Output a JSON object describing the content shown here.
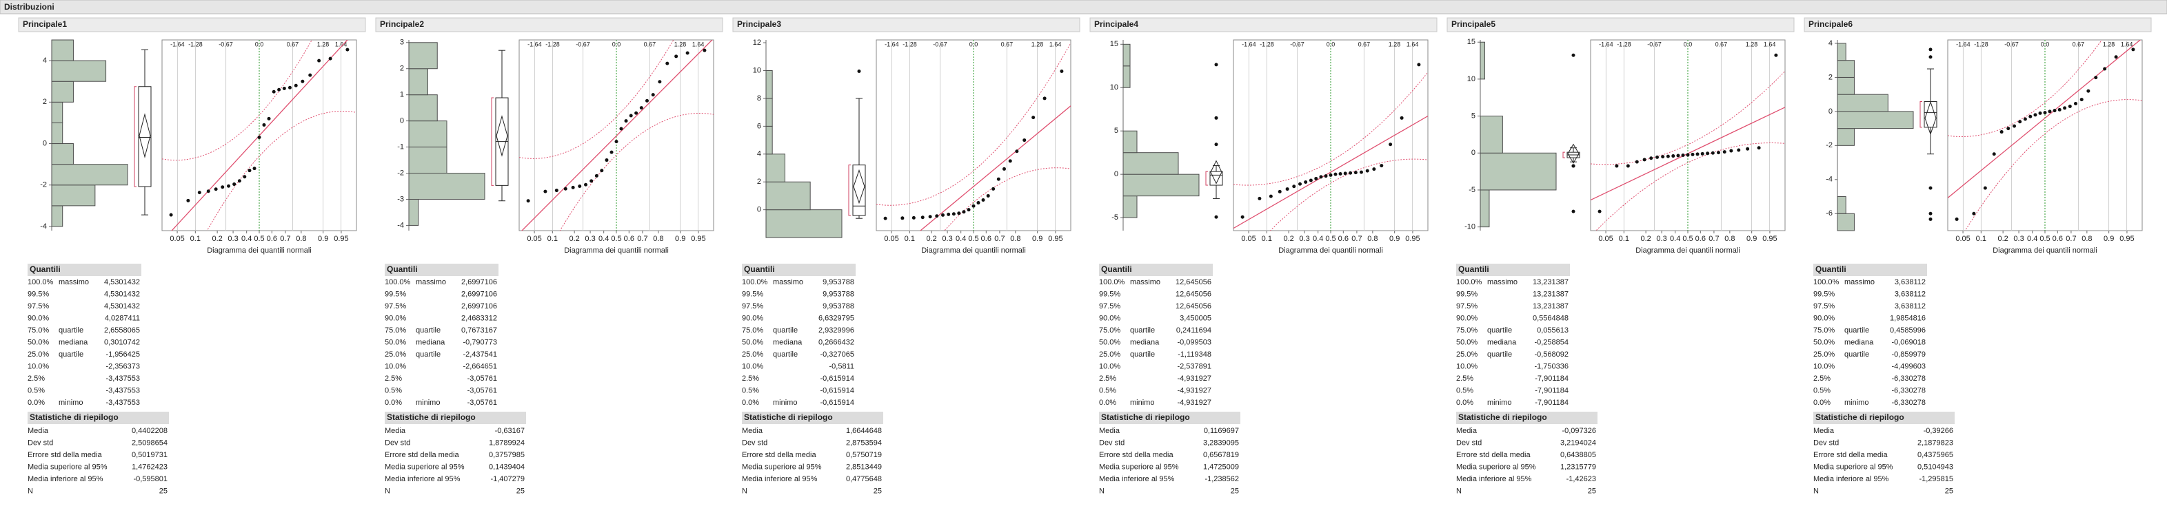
{
  "header": {
    "title": "Distribuzioni"
  },
  "labels": {
    "quantiles": "Quantili",
    "summary": "Statistiche di riepilogo",
    "qplot": "Diagramma dei quantili normali"
  },
  "quantile_axis": {
    "top_ticks": [
      -1.64,
      -1.28,
      -0.67,
      {
        "value": 0,
        "label": "0.0"
      },
      0.67,
      1.28,
      1.64
    ],
    "bottom_ticks": [
      0.05,
      0.1,
      0.2,
      0.3,
      0.4,
      0.5,
      0.6,
      0.7,
      0.8,
      0.9,
      0.95
    ]
  },
  "panels": [
    {
      "title": "Principale1",
      "ylim": [
        -4.2,
        5
      ],
      "yticks": [
        -4,
        -2,
        0,
        2,
        4
      ],
      "bins": [
        -4,
        -3,
        -2,
        -1,
        0,
        1,
        2,
        3,
        4,
        5
      ],
      "counts": [
        1,
        4,
        7,
        2,
        1,
        1,
        2,
        5,
        2
      ],
      "points": [
        -3.44,
        -2.75,
        -2.36,
        -2.3,
        -2.2,
        -2.1,
        -2.05,
        -1.96,
        -1.8,
        -1.6,
        -1.3,
        -1.2,
        0.3,
        0.9,
        1.2,
        2.5,
        2.6,
        2.66,
        2.7,
        2.8,
        3.0,
        3.3,
        4.0,
        4.1,
        4.53
      ],
      "quantiles": [
        {
          "pct": "100.0%",
          "label": "massimo",
          "value": "4,5301432"
        },
        {
          "pct": "99.5%",
          "value": "4,5301432"
        },
        {
          "pct": "97.5%",
          "value": "4,5301432"
        },
        {
          "pct": "90.0%",
          "value": "4,0287411"
        },
        {
          "pct": "75.0%",
          "label": "quartile",
          "value": "2,6558065"
        },
        {
          "pct": "50.0%",
          "label": "mediana",
          "value": "0,3010742"
        },
        {
          "pct": "25.0%",
          "label": "quartile",
          "value": "-1,956425"
        },
        {
          "pct": "10.0%",
          "value": "-2,356373"
        },
        {
          "pct": "2.5%",
          "value": "-3,437553"
        },
        {
          "pct": "0.5%",
          "value": "-3,437553"
        },
        {
          "pct": "0.0%",
          "label": "minimo",
          "value": "-3,437553"
        }
      ],
      "summary": [
        [
          "Media",
          "0,4402208"
        ],
        [
          "Dev std",
          "2,5098654"
        ],
        [
          "Errore std della media",
          "0,5019731"
        ],
        [
          "Media superiore al 95%",
          "1,4762423"
        ],
        [
          "Media inferiore al 95%",
          "-0,595801"
        ],
        [
          "N",
          "25"
        ]
      ]
    },
    {
      "title": "Principale2",
      "ylim": [
        -4.2,
        3.1
      ],
      "yticks": [
        -4,
        -3,
        -2,
        -1,
        0,
        1,
        2,
        3
      ],
      "bins": [
        -4,
        -3,
        -2,
        -1,
        0,
        1,
        2,
        3
      ],
      "counts": [
        1,
        8,
        4,
        4,
        3,
        2,
        3
      ],
      "points": [
        -3.06,
        -2.7,
        -2.66,
        -2.6,
        -2.55,
        -2.5,
        -2.44,
        -2.3,
        -2.1,
        -1.9,
        -1.5,
        -1.2,
        -0.79,
        -0.3,
        0.0,
        0.2,
        0.3,
        0.5,
        0.77,
        1.0,
        1.5,
        2.2,
        2.47,
        2.6,
        2.7
      ],
      "quantiles": [
        {
          "pct": "100.0%",
          "label": "massimo",
          "value": "2,6997106"
        },
        {
          "pct": "99.5%",
          "value": "2,6997106"
        },
        {
          "pct": "97.5%",
          "value": "2,6997106"
        },
        {
          "pct": "90.0%",
          "value": "2,4683312"
        },
        {
          "pct": "75.0%",
          "label": "quartile",
          "value": "0,7673167"
        },
        {
          "pct": "50.0%",
          "label": "mediana",
          "value": "-0,790773"
        },
        {
          "pct": "25.0%",
          "label": "quartile",
          "value": "-2,437541"
        },
        {
          "pct": "10.0%",
          "value": "-2,664651"
        },
        {
          "pct": "2.5%",
          "value": "-3,05761"
        },
        {
          "pct": "0.5%",
          "value": "-3,05761"
        },
        {
          "pct": "0.0%",
          "label": "minimo",
          "value": "-3,05761"
        }
      ],
      "summary": [
        [
          "Media",
          "-0,63167"
        ],
        [
          "Dev std",
          "1,8789924"
        ],
        [
          "Errore std della media",
          "0,3757985"
        ],
        [
          "Media superiore al 95%",
          "0,1439404"
        ],
        [
          "Media inferiore al 95%",
          "-1,407279"
        ],
        [
          "N",
          "25"
        ]
      ]
    },
    {
      "title": "Principale3",
      "ylim": [
        -1.5,
        12.2
      ],
      "yticks": [
        0,
        2,
        4,
        6,
        8,
        10,
        12
      ],
      "bins": [
        -2,
        0,
        2,
        4,
        6,
        8,
        10
      ],
      "counts": [
        12,
        7,
        3,
        1,
        1,
        1
      ],
      "points": [
        -0.62,
        -0.6,
        -0.58,
        -0.55,
        -0.5,
        -0.45,
        -0.38,
        -0.33,
        -0.3,
        -0.25,
        -0.15,
        0.0,
        0.27,
        0.5,
        0.7,
        1.0,
        1.5,
        2.2,
        2.93,
        3.5,
        4.2,
        5.0,
        6.63,
        8.0,
        9.95
      ],
      "quantiles": [
        {
          "pct": "100.0%",
          "label": "massimo",
          "value": "9,953788"
        },
        {
          "pct": "99.5%",
          "value": "9,953788"
        },
        {
          "pct": "97.5%",
          "value": "9,953788"
        },
        {
          "pct": "90.0%",
          "value": "6,6329795"
        },
        {
          "pct": "75.0%",
          "label": "quartile",
          "value": "2,9329996"
        },
        {
          "pct": "50.0%",
          "label": "mediana",
          "value": "0,2666432"
        },
        {
          "pct": "25.0%",
          "label": "quartile",
          "value": "-0,327065"
        },
        {
          "pct": "10.0%",
          "value": "-0,5811"
        },
        {
          "pct": "2.5%",
          "value": "-0,615914"
        },
        {
          "pct": "0.5%",
          "value": "-0,615914"
        },
        {
          "pct": "0.0%",
          "label": "minimo",
          "value": "-0,615914"
        }
      ],
      "summary": [
        [
          "Media",
          "1,6644648"
        ],
        [
          "Dev std",
          "2,8753594"
        ],
        [
          "Errore std della media",
          "0,5750719"
        ],
        [
          "Media superiore al 95%",
          "2,8513449"
        ],
        [
          "Media inferiore al 95%",
          "0,4775648"
        ],
        [
          "N",
          "25"
        ]
      ]
    },
    {
      "title": "Principale4",
      "ylim": [
        -6.5,
        15.5
      ],
      "yticks": [
        -5,
        0,
        5,
        10,
        15
      ],
      "bins": [
        -5,
        -2.5,
        0,
        2.5,
        5,
        7.5,
        10,
        12.5,
        15
      ],
      "counts": [
        2,
        11,
        8,
        2,
        0,
        0,
        1,
        1
      ],
      "points": [
        -4.93,
        -2.8,
        -2.54,
        -2.0,
        -1.7,
        -1.4,
        -1.12,
        -0.9,
        -0.7,
        -0.5,
        -0.3,
        -0.2,
        -0.1,
        0.0,
        0.05,
        0.1,
        0.15,
        0.2,
        0.24,
        0.4,
        0.6,
        1.0,
        3.45,
        6.5,
        12.65
      ],
      "quantiles": [
        {
          "pct": "100.0%",
          "label": "massimo",
          "value": "12,645056"
        },
        {
          "pct": "99.5%",
          "value": "12,645056"
        },
        {
          "pct": "97.5%",
          "value": "12,645056"
        },
        {
          "pct": "90.0%",
          "value": "3,450005"
        },
        {
          "pct": "75.0%",
          "label": "quartile",
          "value": "0,2411694"
        },
        {
          "pct": "50.0%",
          "label": "mediana",
          "value": "-0,099503"
        },
        {
          "pct": "25.0%",
          "label": "quartile",
          "value": "-1,119348"
        },
        {
          "pct": "10.0%",
          "value": "-2,537891"
        },
        {
          "pct": "2.5%",
          "value": "-4,931927"
        },
        {
          "pct": "0.5%",
          "value": "-4,931927"
        },
        {
          "pct": "0.0%",
          "label": "minimo",
          "value": "-4,931927"
        }
      ],
      "summary": [
        [
          "Media",
          "0,1169697"
        ],
        [
          "Dev std",
          "3,2839095"
        ],
        [
          "Errore std della media",
          "0,6567819"
        ],
        [
          "Media superiore al 95%",
          "1,4725009"
        ],
        [
          "Media inferiore al 95%",
          "-1,238562"
        ],
        [
          "N",
          "25"
        ]
      ]
    },
    {
      "title": "Principale5",
      "ylim": [
        -10.5,
        15.3
      ],
      "yticks": [
        -10,
        -5,
        0,
        5,
        10,
        15
      ],
      "bins": [
        -10,
        -5,
        0,
        5,
        10,
        15
      ],
      "counts": [
        2,
        17,
        5,
        0,
        1
      ],
      "points": [
        -7.9,
        -1.75,
        -1.75,
        -1.2,
        -0.9,
        -0.7,
        -0.57,
        -0.5,
        -0.45,
        -0.4,
        -0.35,
        -0.3,
        -0.26,
        -0.2,
        -0.15,
        -0.1,
        -0.05,
        0.0,
        0.056,
        0.15,
        0.3,
        0.4,
        0.56,
        0.7,
        13.23
      ],
      "quantiles": [
        {
          "pct": "100.0%",
          "label": "massimo",
          "value": "13,231387"
        },
        {
          "pct": "99.5%",
          "value": "13,231387"
        },
        {
          "pct": "97.5%",
          "value": "13,231387"
        },
        {
          "pct": "90.0%",
          "value": "0,5564848"
        },
        {
          "pct": "75.0%",
          "label": "quartile",
          "value": "0,055613"
        },
        {
          "pct": "50.0%",
          "label": "mediana",
          "value": "-0,258854"
        },
        {
          "pct": "25.0%",
          "label": "quartile",
          "value": "-0,568092"
        },
        {
          "pct": "10.0%",
          "value": "-1,750336"
        },
        {
          "pct": "2.5%",
          "value": "-7,901184"
        },
        {
          "pct": "0.5%",
          "value": "-7,901184"
        },
        {
          "pct": "0.0%",
          "label": "minimo",
          "value": "-7,901184"
        }
      ],
      "summary": [
        [
          "Media",
          "-0,097326"
        ],
        [
          "Dev std",
          "3,2194024"
        ],
        [
          "Errore std della media",
          "0,6438805"
        ],
        [
          "Media superiore al 95%",
          "1,2315779"
        ],
        [
          "Media inferiore al 95%",
          "-1,42623"
        ],
        [
          "N",
          "25"
        ]
      ]
    },
    {
      "title": "Principale6",
      "ylim": [
        -7,
        4.2
      ],
      "yticks": [
        -6,
        -4,
        -2,
        0,
        2,
        4
      ],
      "bins": [
        -7,
        -6,
        -5,
        -4,
        -3,
        -2,
        -1,
        0,
        1,
        2,
        3,
        4
      ],
      "counts": [
        2,
        1,
        0,
        0,
        0,
        2,
        9,
        6,
        2,
        2,
        1
      ],
      "points": [
        -6.33,
        -6.0,
        -4.5,
        -2.5,
        -1.2,
        -1.0,
        -0.86,
        -0.6,
        -0.45,
        -0.3,
        -0.2,
        -0.1,
        -0.07,
        0.0,
        0.05,
        0.1,
        0.2,
        0.3,
        0.46,
        0.7,
        1.2,
        1.99,
        2.5,
        3.2,
        3.64
      ],
      "quantiles": [
        {
          "pct": "100.0%",
          "label": "massimo",
          "value": "3,638112"
        },
        {
          "pct": "99.5%",
          "value": "3,638112"
        },
        {
          "pct": "97.5%",
          "value": "3,638112"
        },
        {
          "pct": "90.0%",
          "value": "1,9854816"
        },
        {
          "pct": "75.0%",
          "label": "quartile",
          "value": "0,4585996"
        },
        {
          "pct": "50.0%",
          "label": "mediana",
          "value": "-0,069018"
        },
        {
          "pct": "25.0%",
          "label": "quartile",
          "value": "-0,859979"
        },
        {
          "pct": "10.0%",
          "value": "-4,499603"
        },
        {
          "pct": "2.5%",
          "value": "-6,330278"
        },
        {
          "pct": "0.5%",
          "value": "-6,330278"
        },
        {
          "pct": "0.0%",
          "label": "minimo",
          "value": "-6,330278"
        }
      ],
      "summary": [
        [
          "Media",
          "-0,39266"
        ],
        [
          "Dev std",
          "2,1879823"
        ],
        [
          "Errore std della media",
          "0,4375965"
        ],
        [
          "Media superiore al 95%",
          "0,5104943"
        ],
        [
          "Media inferiore al 95%",
          "-1,295815"
        ],
        [
          "N",
          "25"
        ]
      ]
    }
  ]
}
